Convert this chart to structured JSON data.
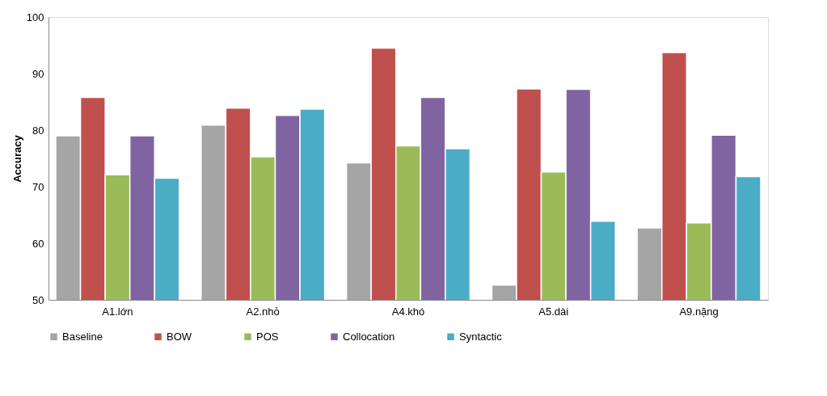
{
  "chart_data": {
    "type": "bar",
    "ylabel": "Accuracy",
    "categories": [
      "A1.lớn",
      "A2.nhỏ",
      "A4.khó",
      "A5.dài",
      "A9.nặng"
    ],
    "series": [
      {
        "name": "Baseline",
        "color": "#a5a5a5",
        "values": [
          79.0,
          80.9,
          74.2,
          52.6,
          62.7
        ]
      },
      {
        "name": "BOW",
        "color": "#c0504d",
        "values": [
          85.8,
          83.9,
          94.5,
          87.3,
          93.7
        ]
      },
      {
        "name": "POS",
        "color": "#9bbb59",
        "values": [
          72.1,
          75.3,
          77.2,
          72.6,
          63.6
        ]
      },
      {
        "name": "Collocation",
        "color": "#8064a2",
        "values": [
          79.0,
          82.6,
          85.8,
          87.2,
          79.1
        ]
      },
      {
        "name": "Syntactic",
        "color": "#4bacc6",
        "values": [
          71.5,
          83.7,
          76.7,
          63.9,
          71.8
        ]
      }
    ],
    "ylim": [
      50,
      100
    ],
    "yticks": [
      50,
      60,
      70,
      80,
      90,
      100
    ],
    "grid": false,
    "legend": "bottom"
  }
}
